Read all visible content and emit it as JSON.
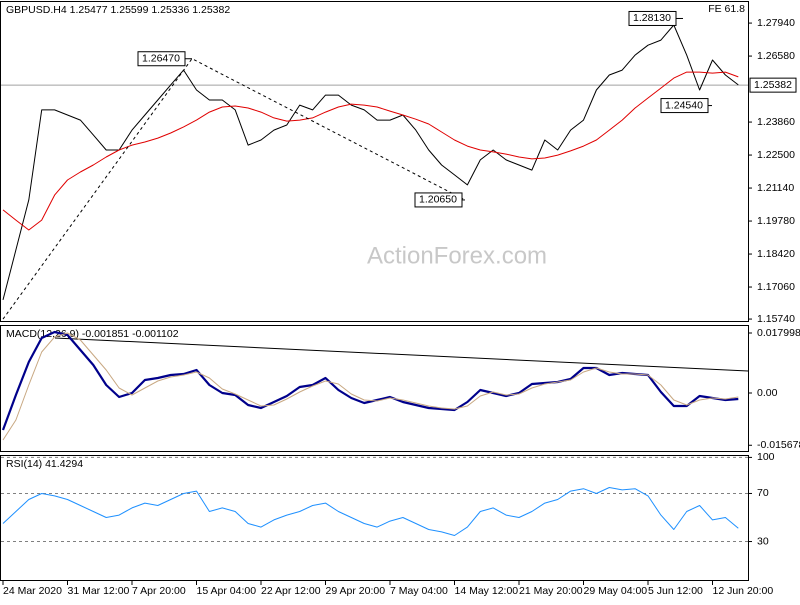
{
  "chart_data": [
    {
      "type": "line",
      "title": "GBPUSD.H4  1.25477 1.25599 1.25336 1.25382",
      "annotation": "FE 61.8",
      "watermark": "ActionForex.com",
      "ylim": [
        1.1566,
        1.2885
      ],
      "yticks": [
        {
          "value": 1.2794,
          "label": "1.27940"
        },
        {
          "value": 1.2658,
          "label": "1.26580"
        },
        {
          "value": 1.2386,
          "label": "1.23860"
        },
        {
          "value": 1.225,
          "label": "1.22500"
        },
        {
          "value": 1.2114,
          "label": "1.21140"
        },
        {
          "value": 1.1978,
          "label": "1.19780"
        },
        {
          "value": 1.1842,
          "label": "1.18420"
        },
        {
          "value": 1.1706,
          "label": "1.17060"
        },
        {
          "value": 1.1574,
          "label": "1.15740"
        }
      ],
      "current_price": 1.25382,
      "point_labels": [
        {
          "value": 1.2647,
          "label": "1.26470"
        },
        {
          "value": 1.2065,
          "label": "1.20650"
        },
        {
          "value": 1.2813,
          "label": "1.28130"
        },
        {
          "value": 1.2454,
          "label": "1.24540"
        }
      ],
      "series": [
        {
          "color": "#000000",
          "values": [
            1.1653,
            1.1859,
            1.2065,
            1.2436,
            1.2436,
            1.2415,
            1.2394,
            1.2333,
            1.2271,
            1.2271,
            1.2353,
            1.2415,
            1.2477,
            1.2539,
            1.26,
            1.2518,
            1.2477,
            1.2477,
            1.2436,
            1.2291,
            1.2312,
            1.2353,
            1.2374,
            1.2456,
            1.2436,
            1.2497,
            1.2497,
            1.2456,
            1.2436,
            1.2394,
            1.2394,
            1.2415,
            1.2353,
            1.2271,
            1.2209,
            1.2168,
            1.2127,
            1.223,
            1.2271,
            1.223,
            1.2209,
            1.2188,
            1.2312,
            1.2271,
            1.2353,
            1.2394,
            1.2518,
            1.258,
            1.26,
            1.2662,
            1.2703,
            1.2724,
            1.2786,
            1.2662,
            1.2518,
            1.2642,
            1.258,
            1.2539
          ]
        },
        {
          "color": "#e00000",
          "values": [
            1.2024,
            1.1982,
            1.1941,
            1.1982,
            1.2085,
            1.2147,
            1.218,
            1.2209,
            1.2242,
            1.2271,
            1.2291,
            1.2304,
            1.232,
            1.2341,
            1.2366,
            1.2394,
            1.2427,
            1.2448,
            1.2452,
            1.2444,
            1.2427,
            1.2403,
            1.239,
            1.2394,
            1.2403,
            1.2427,
            1.2448,
            1.246,
            1.2456,
            1.2448,
            1.2431,
            1.2415,
            1.2398,
            1.2378,
            1.2345,
            1.2312,
            1.2287,
            1.2271,
            1.2263,
            1.2254,
            1.2242,
            1.2234,
            1.2238,
            1.225,
            1.2267,
            1.2287,
            1.2312,
            1.2353,
            1.2394,
            1.2444,
            1.2485,
            1.2526,
            1.2567,
            1.2592,
            1.2592,
            1.2588,
            1.2592,
            1.2572
          ]
        }
      ]
    },
    {
      "type": "line",
      "title": "MACD(12,26,9) -0.001851 -0.001102",
      "ylim": [
        -0.0174,
        0.0204
      ],
      "yticks": [
        0.017998,
        {
          "value": 0,
          "label": "0.00"
        },
        -0.015678
      ],
      "series": [
        {
          "color": "#00008b",
          "values": [
            -0.0111,
            -0.0006,
            0.0093,
            0.0165,
            0.0183,
            0.0174,
            0.0129,
            0.0084,
            0.0024,
            -0.0012,
            0,
            0.0039,
            0.0045,
            0.0054,
            0.0057,
            0.0069,
            0.0024,
            0,
            -0.0006,
            -0.0036,
            -0.0045,
            -0.0027,
            -0.0009,
            0.0018,
            0.0024,
            0.0045,
            0.0009,
            -0.0015,
            -0.003,
            -0.0021,
            -0.0012,
            -0.0027,
            -0.0036,
            -0.0045,
            -0.0048,
            -0.0051,
            -0.0027,
            0.0009,
            0,
            -0.0009,
            0,
            0.0027,
            0.003,
            0.0033,
            0.0042,
            0.0075,
            0.0075,
            0.0054,
            0.006,
            0.0057,
            0.0054,
            0.0003,
            -0.0039,
            -0.0039,
            -0.0009,
            -0.0015,
            -0.0021,
            -0.0018
          ]
        },
        {
          "color": "#c8a882",
          "values": [
            -0.0141,
            -0.0081,
            0.0024,
            0.0123,
            0.0168,
            0.018,
            0.0159,
            0.0114,
            0.0069,
            0.0015,
            -0.0006,
            0.0015,
            0.0036,
            0.0048,
            0.0054,
            0.0063,
            0.0045,
            0.0012,
            -0.0003,
            -0.0021,
            -0.0039,
            -0.0036,
            -0.0018,
            0.0003,
            0.0021,
            0.0036,
            0.0027,
            -0.0003,
            -0.0021,
            -0.0024,
            -0.0015,
            -0.0021,
            -0.003,
            -0.0039,
            -0.0045,
            -0.0048,
            -0.0039,
            -0.0009,
            0.0003,
            -0.0006,
            -0.0003,
            0.0015,
            0.0027,
            0.0033,
            0.0039,
            0.0063,
            0.0075,
            0.0063,
            0.0057,
            0.0057,
            0.0054,
            0.0024,
            -0.0021,
            -0.0036,
            -0.0021,
            -0.0015,
            -0.0018,
            -0.0012
          ]
        }
      ]
    },
    {
      "type": "line",
      "title": "RSI(14) 41.4294",
      "ylim": [
        -2,
        102
      ],
      "yticks": [
        100,
        70,
        30
      ],
      "grid": true,
      "categories": [
        "24 Mar 2020",
        null,
        null,
        null,
        null,
        "31 Mar 12:00",
        null,
        null,
        null,
        null,
        "7 Apr 20:00",
        null,
        null,
        null,
        null,
        "15 Apr 04:00",
        null,
        null,
        null,
        null,
        "22 Apr 12:00",
        null,
        null,
        null,
        null,
        "29 Apr 20:00",
        null,
        null,
        null,
        null,
        "7 May 04:00",
        null,
        null,
        null,
        null,
        "14 May 12:00",
        null,
        null,
        null,
        null,
        "21 May 20:00",
        null,
        null,
        null,
        null,
        "29 May 04:00",
        null,
        null,
        null,
        null,
        "5 Jun 12:00",
        null,
        null,
        null,
        null,
        "12 Jun 20:00",
        null,
        null
      ],
      "series": [
        {
          "color": "#1e90ff",
          "values": [
            45,
            55,
            65,
            70,
            68,
            65,
            60,
            55,
            50,
            52,
            58,
            62,
            60,
            65,
            70,
            72,
            55,
            58,
            55,
            45,
            42,
            48,
            52,
            55,
            60,
            62,
            55,
            50,
            45,
            42,
            47,
            50,
            45,
            40,
            38,
            35,
            42,
            55,
            58,
            52,
            50,
            55,
            62,
            65,
            72,
            74,
            70,
            75,
            73,
            74,
            68,
            52,
            40,
            55,
            60,
            48,
            50,
            41
          ]
        }
      ]
    }
  ]
}
